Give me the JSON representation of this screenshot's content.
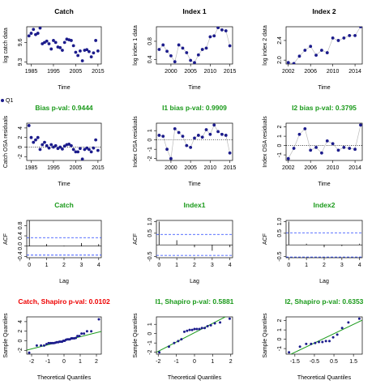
{
  "legend": {
    "label": "Q1",
    "color": "#1c1c8c"
  },
  "chart_data": [
    {
      "type": "scatter",
      "title": "Catch",
      "title_color": "#000000",
      "xlabel": "Time",
      "ylabel": "log catch data",
      "color": "#1c1c8c",
      "connect": false,
      "x": [
        1984,
        1985,
        1986,
        1987,
        1988,
        1989,
        1990,
        1991,
        1992,
        1993,
        1994,
        1995,
        1996,
        1997,
        1998,
        1999,
        2000,
        2001,
        2002,
        2003,
        2004,
        2005,
        2006,
        2007,
        2008,
        2009,
        2010,
        2011,
        2012,
        2013,
        2014,
        2015
      ],
      "values": [
        9.7,
        9.74,
        9.8,
        9.72,
        9.74,
        9.82,
        9.58,
        9.6,
        9.62,
        9.58,
        9.5,
        9.63,
        9.6,
        9.53,
        9.52,
        9.48,
        9.6,
        9.65,
        9.64,
        9.63,
        9.55,
        9.45,
        9.4,
        9.47,
        9.32,
        9.48,
        9.49,
        9.46,
        9.38,
        9.44,
        9.63,
        9.47
      ],
      "xlim": [
        1983,
        2016.5
      ],
      "ylim": [
        9.27,
        9.84
      ],
      "xticks": [
        1985,
        1995,
        2005,
        2015
      ],
      "yticks": [
        9.3,
        9.6
      ]
    },
    {
      "type": "scatter",
      "title": "Index 1",
      "title_color": "#000000",
      "xlabel": "Time",
      "ylabel": "log index 1 data",
      "color": "#1c1c8c",
      "connect": true,
      "x": [
        1997,
        1998,
        1999,
        2000,
        2001,
        2002,
        2003,
        2004,
        2005,
        2006,
        2007,
        2008,
        2009,
        2010,
        2011,
        2012,
        2013,
        2014,
        2015
      ],
      "values": [
        0.62,
        0.72,
        0.58,
        0.48,
        0.35,
        0.72,
        0.65,
        0.55,
        0.38,
        0.33,
        0.5,
        0.62,
        0.65,
        0.9,
        0.92,
        1.1,
        1.05,
        1.03,
        0.7
      ],
      "xlim": [
        1996.3,
        2015.7
      ],
      "ylim": [
        0.3,
        1.12
      ],
      "xticks": [
        2000,
        2005,
        2010,
        2015
      ],
      "yticks": [
        0.4,
        0.8
      ]
    },
    {
      "type": "scatter",
      "title": "Index 2",
      "title_color": "#000000",
      "xlabel": "Time",
      "ylabel": "log index 2 data",
      "color": "#1c1c8c",
      "connect": true,
      "x": [
        2002,
        2003,
        2004,
        2005,
        2006,
        2007,
        2008,
        2009,
        2010,
        2011,
        2012,
        2013,
        2014,
        2015
      ],
      "values": [
        1.95,
        1.93,
        2.08,
        2.2,
        2.28,
        2.1,
        2.2,
        2.15,
        2.45,
        2.4,
        2.45,
        2.5,
        2.5,
        2.68
      ],
      "xlim": [
        2001.6,
        2015.3
      ],
      "ylim": [
        1.92,
        2.68
      ],
      "xticks": [
        2002,
        2006,
        2010,
        2014
      ],
      "yticks": [
        {
          "value": 2,
          "label": "2.0"
        },
        2.4
      ]
    },
    {
      "type": "scatter",
      "title": "Bias p-val: 0.9444",
      "title_color": "#1a9a1a",
      "xlabel": "Time",
      "ylabel": "Catch OSA residuals",
      "color": "#1c1c8c",
      "connect": false,
      "hline": 0,
      "x": [
        1984,
        1985,
        1986,
        1987,
        1988,
        1989,
        1990,
        1991,
        1992,
        1993,
        1994,
        1995,
        1996,
        1997,
        1998,
        1999,
        2000,
        2001,
        2002,
        2003,
        2004,
        2005,
        2006,
        2007,
        2008,
        2009,
        2010,
        2011,
        2012,
        2013,
        2014,
        2015
      ],
      "values": [
        4.5,
        2.0,
        1.0,
        1.5,
        2.0,
        -0.5,
        0.5,
        1.0,
        0.3,
        -0.2,
        0.5,
        0,
        0.3,
        -0.3,
        0,
        -0.4,
        0.2,
        0.5,
        0.6,
        0.3,
        -0.5,
        -1.0,
        -1.0,
        -0.3,
        -2.5,
        -0.5,
        -0.2,
        -0.5,
        -1.0,
        -0.2,
        1.5,
        -0.7
      ],
      "xlim": [
        1983,
        2016.5
      ],
      "ylim": [
        -2.8,
        5
      ],
      "xticks": [
        1985,
        1995,
        2005,
        2015
      ],
      "yticks": [
        -2,
        0,
        2,
        4
      ]
    },
    {
      "type": "scatter",
      "title": "I1 bias p-val: 0.9909",
      "title_color": "#1a9a1a",
      "xlabel": "Time",
      "ylabel": "Index OSA residuals",
      "color": "#1c1c8c",
      "connect": true,
      "hline": 0,
      "x": [
        1997,
        1998,
        1999,
        2000,
        2001,
        2002,
        2003,
        2004,
        2005,
        2006,
        2007,
        2008,
        2009,
        2010,
        2011,
        2012,
        2013,
        2014,
        2015
      ],
      "values": [
        0.5,
        0.4,
        -1.0,
        -2.0,
        1.2,
        0.8,
        0.4,
        -0.6,
        -0.8,
        0.2,
        0.5,
        0.3,
        1.1,
        0.6,
        1.6,
        0.9,
        0.6,
        0.5,
        -1.4
      ],
      "xlim": [
        1996.3,
        2015.7
      ],
      "ylim": [
        -2.2,
        1.8
      ],
      "xticks": [
        2000,
        2005,
        2010,
        2015
      ],
      "yticks": [
        -2,
        -1,
        0,
        1
      ]
    },
    {
      "type": "scatter",
      "title": "I2 bias p-val: 0.3795",
      "title_color": "#1a9a1a",
      "xlabel": "Time",
      "ylabel": "Index OSA residuals",
      "color": "#1c1c8c",
      "connect": true,
      "hline": 0,
      "x": [
        2002,
        2003,
        2004,
        2005,
        2006,
        2007,
        2008,
        2009,
        2010,
        2011,
        2012,
        2013,
        2014,
        2015
      ],
      "values": [
        -1.4,
        -0.3,
        1.2,
        1.8,
        -0.5,
        -0.2,
        -0.8,
        0.5,
        0.2,
        -0.5,
        -0.2,
        -0.3,
        -0.4,
        2.2
      ],
      "xlim": [
        2001.6,
        2015.3
      ],
      "ylim": [
        -1.6,
        2.4
      ],
      "xticks": [
        2002,
        2006,
        2010,
        2014
      ],
      "yticks": [
        -1,
        0,
        1,
        2
      ]
    },
    {
      "type": "acf",
      "title": "Catch",
      "title_color": "#1a9a1a",
      "xlabel": "Lag",
      "ylabel": "ACF",
      "color": "#000000",
      "ci": [
        -0.35,
        0.33
      ],
      "x": [
        0,
        1,
        2,
        3,
        4
      ],
      "values": [
        1.0,
        0.08,
        0.02,
        0.12,
        0.08
      ],
      "xlim": [
        -0.15,
        4.15
      ],
      "ylim": [
        -0.45,
        1.0
      ],
      "xticks": [
        0,
        1,
        2,
        3,
        4
      ],
      "yticks": [
        -0.4,
        {
          "value": 0,
          "label": "0.0"
        },
        0.4,
        0.8
      ]
    },
    {
      "type": "acf",
      "title": "Index1",
      "title_color": "#1a9a1a",
      "xlabel": "Lag",
      "ylabel": "ACF",
      "color": "#000000",
      "ci": [
        -0.45,
        0.45
      ],
      "x": [
        0,
        1,
        2,
        3,
        4
      ],
      "values": [
        1.0,
        0.2,
        -0.1,
        -0.25,
        -0.1
      ],
      "xlim": [
        -0.15,
        4.15
      ],
      "ylim": [
        -0.55,
        1.05
      ],
      "xticks": [
        0,
        1,
        2,
        3,
        4
      ],
      "yticks": [
        -0.5,
        0.5,
        {
          "value": 1,
          "label": "1.0"
        }
      ]
    },
    {
      "type": "acf",
      "title": "Index2",
      "title_color": "#1a9a1a",
      "xlabel": "Lag",
      "ylabel": "ACF",
      "color": "#000000",
      "ci": [
        -0.52,
        0.52
      ],
      "x": [
        0,
        1,
        2,
        3,
        4
      ],
      "values": [
        1.0,
        0.05,
        -0.1,
        -0.05,
        0.05
      ],
      "xlim": [
        -0.15,
        4.15
      ],
      "ylim": [
        -0.55,
        1.05
      ],
      "xticks": [
        0,
        1,
        2,
        3,
        4
      ],
      "yticks": [
        -0.5,
        0.5,
        {
          "value": 1,
          "label": "1.0"
        }
      ]
    },
    {
      "type": "qq",
      "title": "Catch, Shapiro p-val: 0.0102",
      "title_color": "#ee0000",
      "xlabel": "Theoretical Quantiles",
      "ylabel": "Sample Quantiles",
      "color": "#1c1c8c",
      "fit_line": {
        "intercept": 0,
        "slope": 0.85
      },
      "x": [
        -2.15,
        -1.68,
        -1.42,
        -1.23,
        -1.08,
        -0.95,
        -0.83,
        -0.73,
        -0.63,
        -0.53,
        -0.45,
        -0.36,
        -0.28,
        -0.2,
        -0.12,
        -0.04,
        0.04,
        0.12,
        0.2,
        0.28,
        0.36,
        0.45,
        0.53,
        0.63,
        0.73,
        0.83,
        0.95,
        1.08,
        1.23,
        1.42,
        1.68,
        2.15
      ],
      "values": [
        -2.5,
        -1.0,
        -1.0,
        -1.0,
        -0.7,
        -0.5,
        -0.5,
        -0.5,
        -0.5,
        -0.4,
        -0.3,
        -0.3,
        -0.2,
        -0.2,
        -0.2,
        0,
        0,
        0.2,
        0.3,
        0.3,
        0.3,
        0.5,
        0.5,
        0.5,
        0.6,
        1.0,
        1.0,
        1.5,
        1.5,
        2.0,
        2.0,
        4.5
      ],
      "xlim": [
        -2.3,
        2.3
      ],
      "ylim": [
        -2.8,
        5
      ],
      "xticks": [
        -2,
        -1,
        0,
        1,
        2
      ],
      "yticks": [
        -2,
        0,
        2,
        4
      ]
    },
    {
      "type": "qq",
      "title": "I1, Shapiro p-val: 0.5881",
      "title_color": "#1a9a1a",
      "xlabel": "Theoretical Quantiles",
      "ylabel": "Sample Quantiles",
      "color": "#1c1c8c",
      "fit_line": {
        "intercept": 0.1,
        "slope": 1.0
      },
      "x": [
        -1.94,
        -1.41,
        -1.12,
        -0.9,
        -0.72,
        -0.56,
        -0.41,
        -0.27,
        -0.13,
        0,
        0.13,
        0.27,
        0.41,
        0.56,
        0.72,
        0.9,
        1.12,
        1.41,
        1.94
      ],
      "values": [
        -2.0,
        -1.4,
        -1.0,
        -0.8,
        -0.6,
        0.2,
        0.3,
        0.4,
        0.4,
        0.5,
        0.5,
        0.5,
        0.6,
        0.6,
        0.8,
        0.9,
        1.1,
        1.2,
        1.6
      ],
      "xlim": [
        -2.1,
        2.1
      ],
      "ylim": [
        -2.2,
        1.8
      ],
      "xticks": [
        -2,
        -1,
        0,
        1,
        2
      ],
      "yticks": [
        -2,
        -1,
        0,
        1
      ]
    },
    {
      "type": "qq",
      "title": "I2, Shapiro p-val: 0.6353",
      "title_color": "#1a9a1a",
      "xlabel": "Theoretical Quantiles",
      "ylabel": "Sample Quantiles",
      "color": "#1c1c8c",
      "fit_line": {
        "intercept": 0.1,
        "slope": 1.0
      },
      "x": [
        -1.8,
        -1.24,
        -0.92,
        -0.67,
        -0.46,
        -0.27,
        -0.09,
        0.09,
        0.27,
        0.46,
        0.67,
        0.92,
        1.24,
        1.8
      ],
      "values": [
        -1.4,
        -0.8,
        -0.5,
        -0.5,
        -0.4,
        -0.3,
        -0.3,
        -0.2,
        -0.2,
        0.2,
        0.5,
        1.2,
        1.8,
        2.2
      ],
      "xlim": [
        -1.95,
        1.95
      ],
      "ylim": [
        -1.6,
        2.4
      ],
      "xticks": [
        -1.5,
        -0.5,
        0.5,
        1.5
      ],
      "yticks": [
        -1,
        0,
        1,
        2
      ]
    }
  ]
}
